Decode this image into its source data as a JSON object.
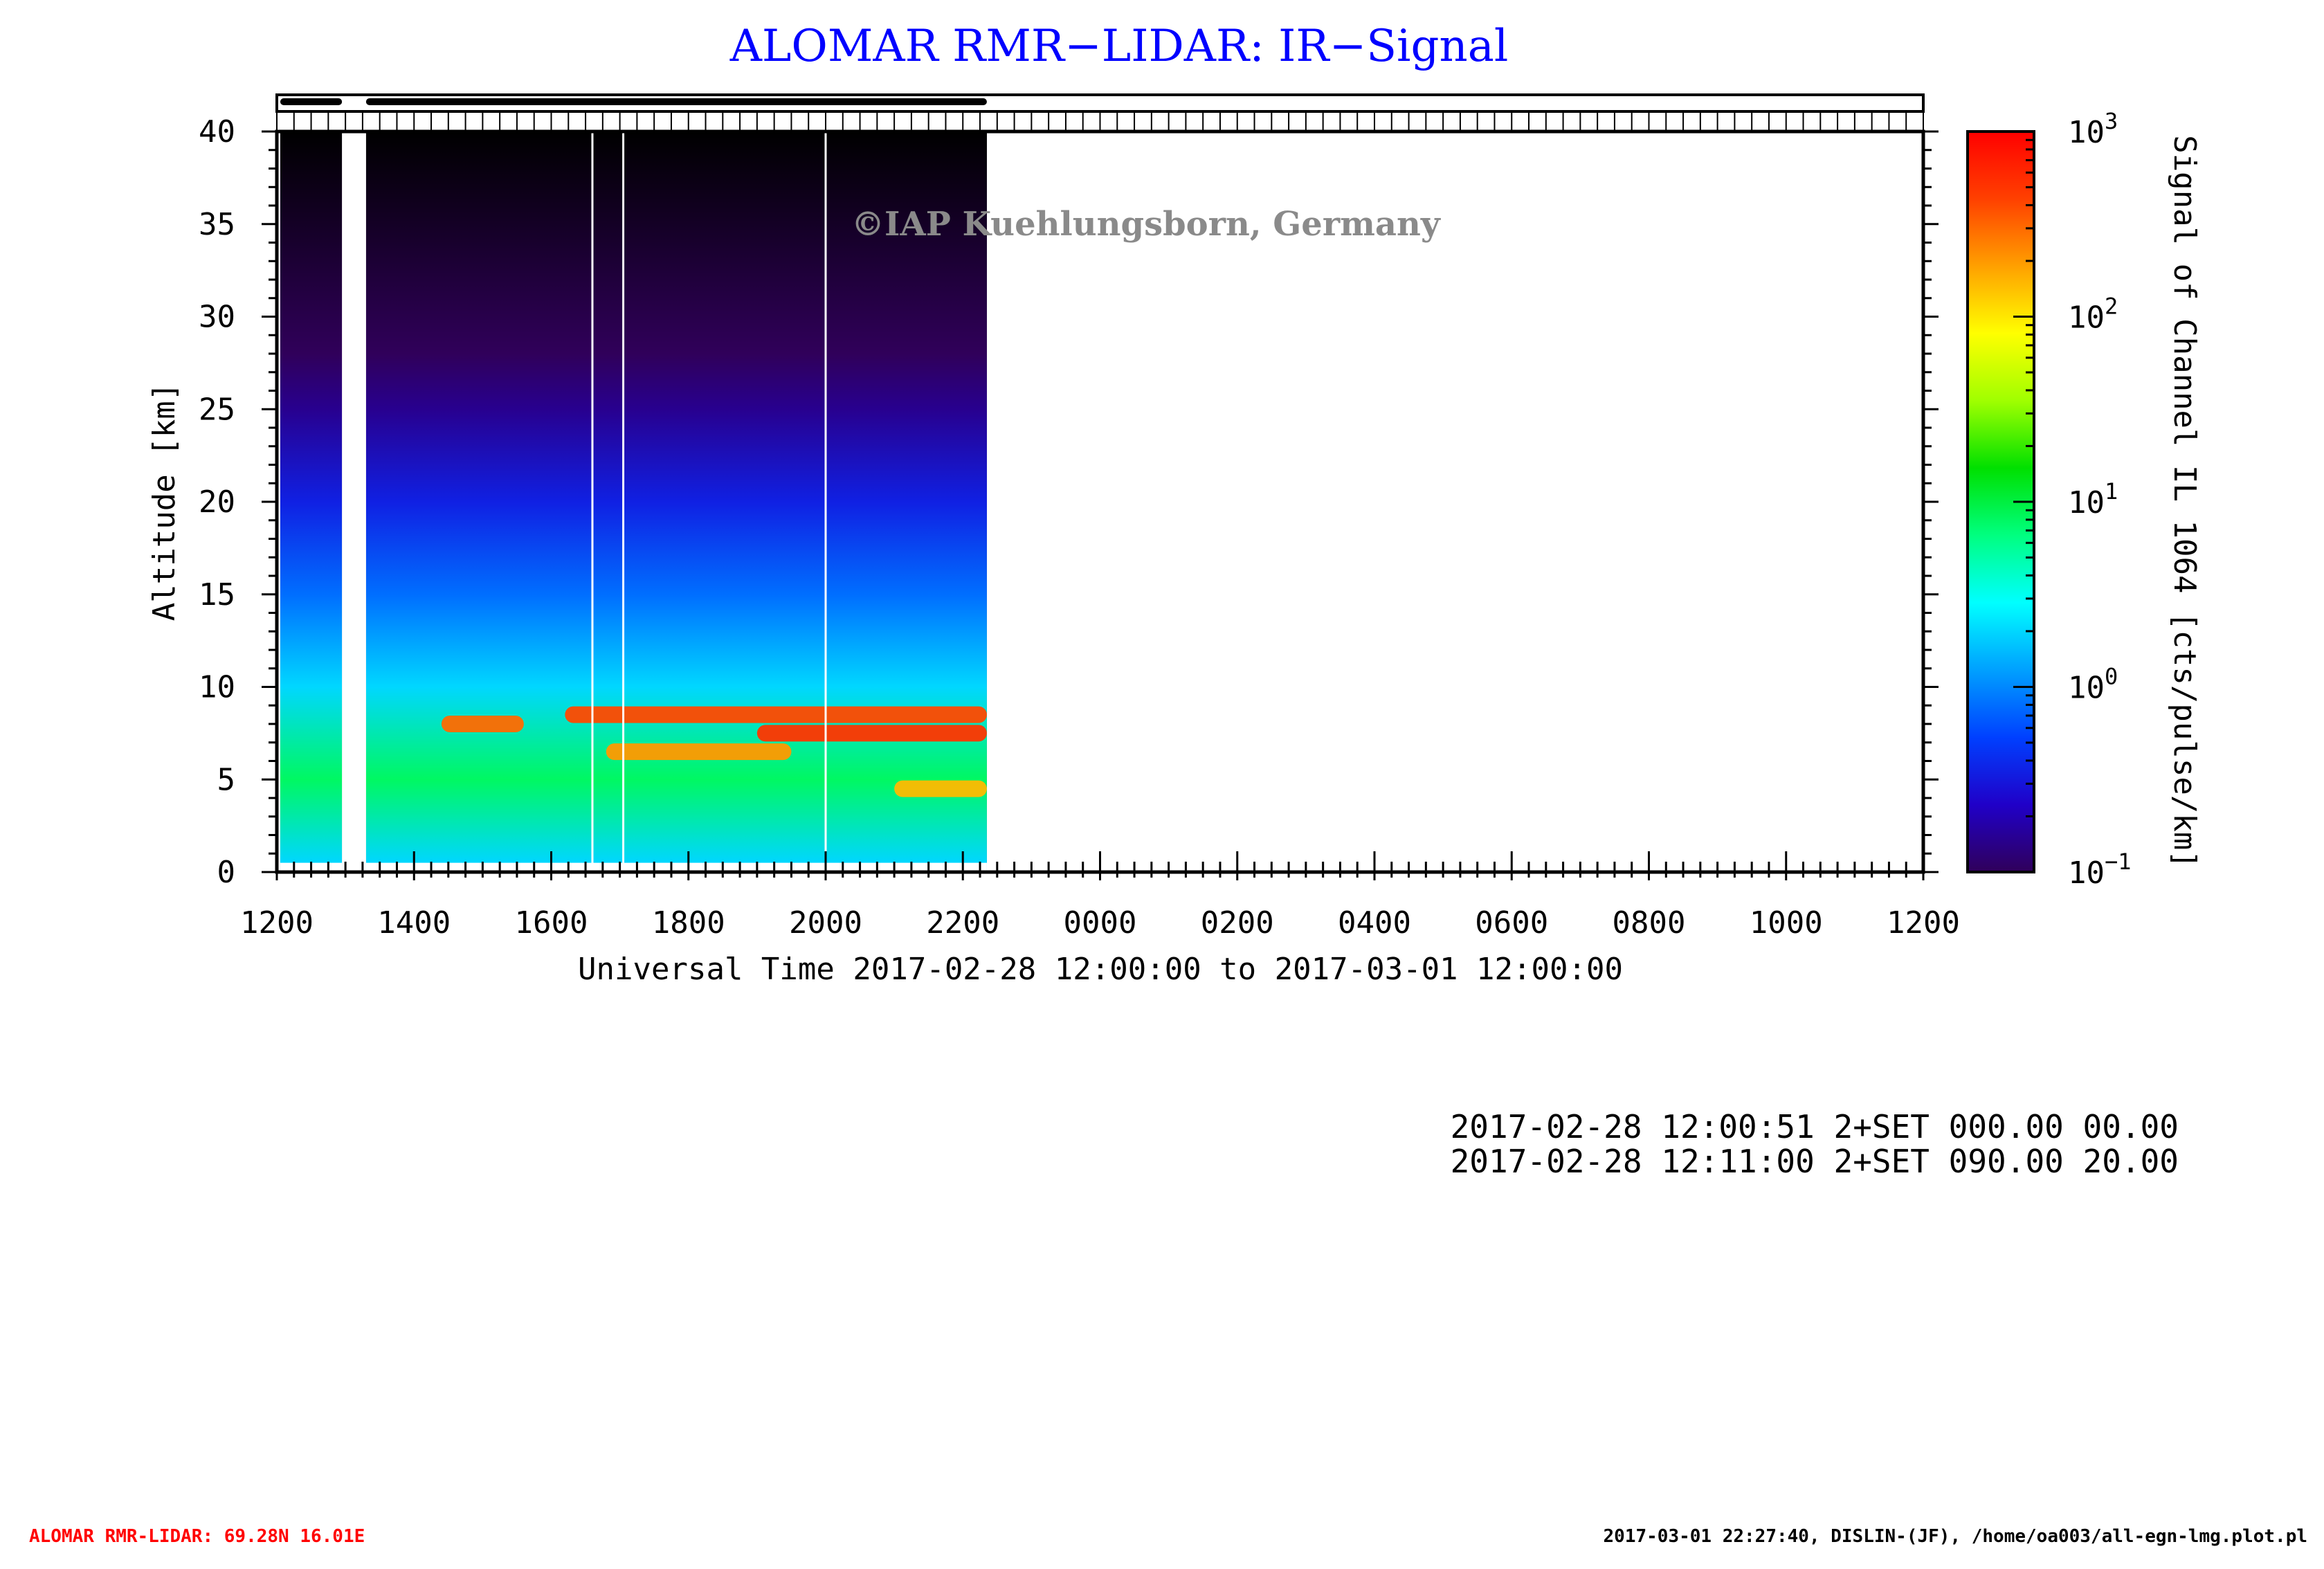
{
  "chart_data": {
    "type": "heatmap",
    "title": "ALOMAR RMR−LIDAR: IR−Signal",
    "title_color": "#0000ff",
    "xlabel": "Universal Time 2017-02-28 12:00:00 to 2017-03-01 12:00:00",
    "ylabel": "Altitude [km]",
    "colorbar_label": "Signal of Channel IL 1064 [cts/pulse/km]",
    "x_ticks": [
      "1200",
      "1400",
      "1600",
      "1800",
      "2000",
      "2200",
      "0000",
      "0200",
      "0400",
      "0600",
      "0800",
      "1000",
      "1200"
    ],
    "x_range_hours": [
      12,
      36
    ],
    "y_ticks": [
      0,
      5,
      10,
      15,
      20,
      25,
      30,
      35,
      40
    ],
    "ylim": [
      0,
      40
    ],
    "color_scale": "log",
    "clim": [
      0.1,
      1000
    ],
    "colorbar_ticks": [
      {
        "base": "10",
        "exp": "3",
        "value": 1000
      },
      {
        "base": "10",
        "exp": "2",
        "value": 100
      },
      {
        "base": "10",
        "exp": "1",
        "value": 10
      },
      {
        "base": "10",
        "exp": "0",
        "value": 1
      },
      {
        "base": "10",
        "exp": "−1",
        "value": 0.1
      }
    ],
    "colormap": [
      "#30005a",
      "#2000c8",
      "#0040ff",
      "#00a0ff",
      "#00ffff",
      "#00ff80",
      "#00e000",
      "#a0ff00",
      "#ffff00",
      "#ffa000",
      "#ff4000",
      "#ff0000"
    ],
    "data_segments_hours": [
      [
        12.05,
        12.95
      ],
      [
        13.3,
        22.35
      ]
    ],
    "gaps_hours": [
      [
        12.95,
        13.3
      ]
    ],
    "thin_gaps_hours": [
      16.6,
      17.05,
      20.0
    ],
    "signal_profile": [
      {
        "altitude_km": 0.5,
        "signal": 2
      },
      {
        "altitude_km": 5,
        "signal": 8
      },
      {
        "altitude_km": 10,
        "signal": 2
      },
      {
        "altitude_km": 15,
        "signal": 0.8
      },
      {
        "altitude_km": 20,
        "signal": 0.35
      },
      {
        "altitude_km": 25,
        "signal": 0.15
      },
      {
        "altitude_km": 28,
        "signal": 0.1
      }
    ],
    "cloud_layers": [
      {
        "start_h": 14.4,
        "end_h": 15.6,
        "alt_km": 8.0,
        "signal": 300
      },
      {
        "start_h": 16.2,
        "end_h": 22.35,
        "alt_km": 8.5,
        "signal": 400
      },
      {
        "start_h": 16.8,
        "end_h": 19.5,
        "alt_km": 6.5,
        "signal": 200
      },
      {
        "start_h": 19.0,
        "end_h": 22.35,
        "alt_km": 7.5,
        "signal": 500
      },
      {
        "start_h": 21.0,
        "end_h": 22.35,
        "alt_km": 4.5,
        "signal": 150
      }
    ],
    "watermark": "©IAP Kuehlungsborn, Germany"
  },
  "info_lines": [
    "2017-02-28 12:00:51 2+SET 000.00 00.00",
    "2017-02-28 12:11:00 2+SET 090.00 20.00"
  ],
  "footer": {
    "left": "ALOMAR RMR-LIDAR: 69.28N 16.01E",
    "left_color": "#ff0000",
    "right": "2017-03-01 22:27:40, DISLIN-(JF), /home/oa003/all-egn-lmg.plot.pl"
  }
}
